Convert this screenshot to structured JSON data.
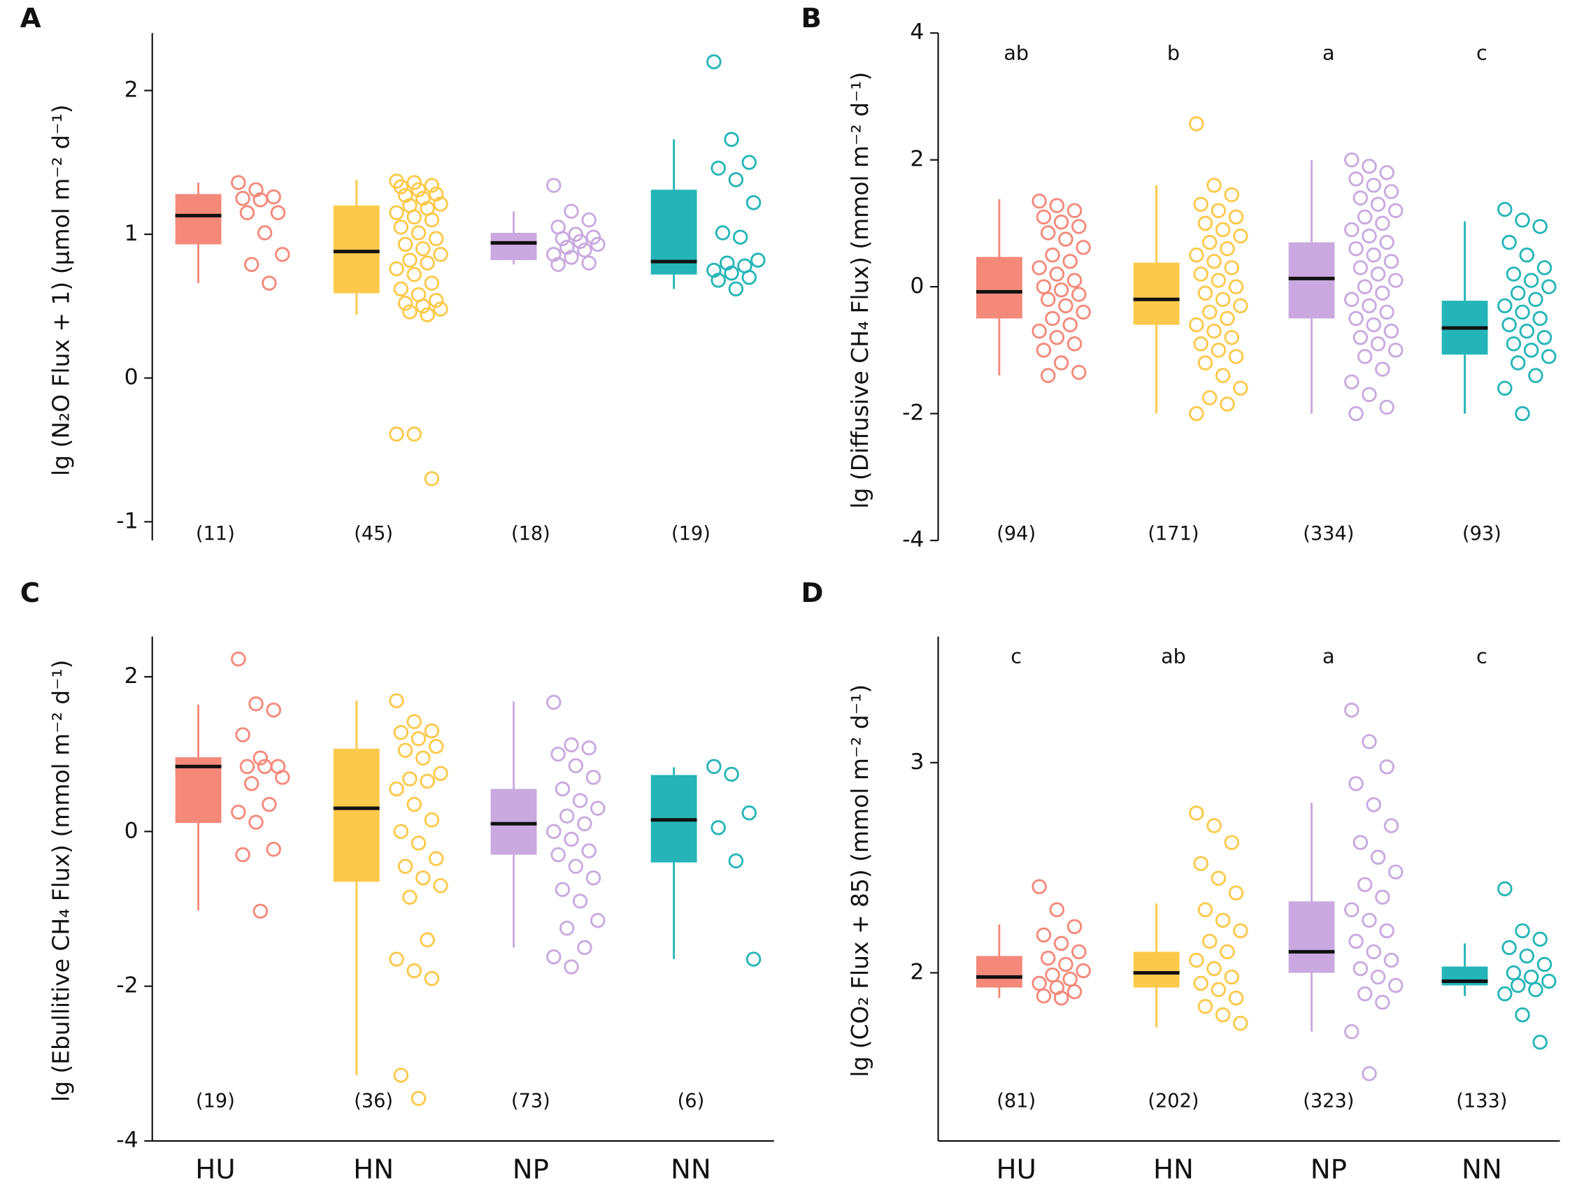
{
  "colors": [
    "#f4897a",
    "#fdc94a",
    "#c9a9df",
    "#25b5b8"
  ],
  "chart_data": [
    {
      "type": "box",
      "panel": "A",
      "ylabel": "lg (N₂O Flux + 1) (μmol m⁻² d⁻¹)",
      "ylim": [
        -1.13,
        2.4
      ],
      "yticks": [
        -1,
        0,
        1,
        2
      ],
      "n_labels": [
        "(11)",
        "(45)",
        "(18)",
        "(19)"
      ],
      "boxes": [
        {
          "whislo": 0.66,
          "q1": 0.93,
          "med": 1.13,
          "q3": 1.28,
          "whishi": 1.36
        },
        {
          "whislo": 0.44,
          "q1": 0.59,
          "med": 0.88,
          "q3": 1.2,
          "whishi": 1.38
        },
        {
          "whislo": 0.79,
          "q1": 0.82,
          "med": 0.94,
          "q3": 1.01,
          "whishi": 1.16
        },
        {
          "whislo": 0.62,
          "q1": 0.72,
          "med": 0.81,
          "q3": 1.31,
          "whishi": 1.66
        }
      ],
      "points": [
        [
          1.36,
          1.31,
          1.26,
          1.25,
          1.24,
          1.15,
          1.15,
          1.01,
          0.86,
          0.79,
          0.66
        ],
        [
          1.37,
          1.36,
          1.34,
          1.33,
          1.31,
          1.28,
          1.27,
          1.25,
          1.21,
          1.2,
          1.18,
          1.15,
          1.12,
          1.1,
          1.05,
          1.01,
          0.97,
          0.93,
          0.9,
          0.86,
          0.82,
          0.8,
          0.76,
          0.72,
          0.66,
          0.62,
          0.58,
          0.54,
          0.52,
          0.5,
          0.48,
          0.46,
          0.44,
          -0.39,
          -0.39,
          -0.7
        ],
        [
          1.34,
          1.16,
          1.1,
          1.05,
          1.0,
          0.98,
          0.97,
          0.95,
          0.93,
          0.91,
          0.89,
          0.86,
          0.84,
          0.8,
          0.79
        ],
        [
          2.2,
          1.66,
          1.5,
          1.46,
          1.38,
          1.22,
          1.01,
          0.98,
          0.82,
          0.8,
          0.78,
          0.75,
          0.73,
          0.7,
          0.68,
          0.62
        ]
      ]
    },
    {
      "type": "box",
      "panel": "B",
      "ylabel": "lg (Diffusive CH₄ Flux) (mmol m⁻² d⁻¹)",
      "ylim": [
        -4,
        4
      ],
      "yticks": [
        -4,
        -2,
        0,
        2,
        4
      ],
      "letters": [
        "ab",
        "b",
        "a",
        "c"
      ],
      "n_labels": [
        "(94)",
        "(171)",
        "(334)",
        "(93)"
      ],
      "boxes": [
        {
          "whislo": -1.4,
          "q1": -0.5,
          "med": -0.08,
          "q3": 0.47,
          "whishi": 1.38
        },
        {
          "whislo": -2.0,
          "q1": -0.6,
          "med": -0.2,
          "q3": 0.38,
          "whishi": 1.6
        },
        {
          "whislo": -2.0,
          "q1": -0.5,
          "med": 0.13,
          "q3": 0.7,
          "whishi": 2.0
        },
        {
          "whislo": -2.0,
          "q1": -1.07,
          "med": -0.65,
          "q3": -0.22,
          "whishi": 1.03
        }
      ],
      "points": [
        [
          1.35,
          1.28,
          1.2,
          1.1,
          1.02,
          0.95,
          0.85,
          0.75,
          0.62,
          0.5,
          0.4,
          0.3,
          0.2,
          0.1,
          0.0,
          -0.05,
          -0.12,
          -0.2,
          -0.3,
          -0.4,
          -0.5,
          -0.6,
          -0.7,
          -0.8,
          -0.9,
          -1.0,
          -1.2,
          -1.35,
          -1.4
        ],
        [
          2.57,
          1.6,
          1.45,
          1.3,
          1.2,
          1.1,
          1.0,
          0.9,
          0.8,
          0.7,
          0.6,
          0.5,
          0.4,
          0.3,
          0.2,
          0.1,
          0.0,
          -0.1,
          -0.2,
          -0.3,
          -0.4,
          -0.5,
          -0.6,
          -0.7,
          -0.8,
          -0.9,
          -1.0,
          -1.1,
          -1.2,
          -1.4,
          -1.6,
          -1.75,
          -1.85,
          -2.0
        ],
        [
          2.0,
          1.9,
          1.8,
          1.7,
          1.6,
          1.5,
          1.4,
          1.3,
          1.2,
          1.1,
          1.0,
          0.9,
          0.8,
          0.7,
          0.6,
          0.5,
          0.4,
          0.3,
          0.2,
          0.1,
          0.0,
          -0.1,
          -0.2,
          -0.3,
          -0.4,
          -0.5,
          -0.6,
          -0.7,
          -0.8,
          -0.9,
          -1.0,
          -1.1,
          -1.3,
          -1.5,
          -1.7,
          -1.9,
          -2.0
        ],
        [
          1.22,
          1.05,
          0.95,
          0.7,
          0.5,
          0.3,
          0.2,
          0.1,
          0.0,
          -0.1,
          -0.2,
          -0.3,
          -0.4,
          -0.5,
          -0.6,
          -0.7,
          -0.8,
          -0.9,
          -1.0,
          -1.1,
          -1.2,
          -1.4,
          -1.6,
          -2.0
        ]
      ]
    },
    {
      "type": "box",
      "panel": "C",
      "ylabel": "lg (Ebullitive CH₄ Flux) (mmol m⁻² d⁻¹)",
      "categories": [
        "HU",
        "HN",
        "NP",
        "NN"
      ],
      "ylim": [
        -4,
        2.52
      ],
      "yticks": [
        -4,
        -2,
        0,
        2
      ],
      "n_labels": [
        "(19)",
        "(36)",
        "(73)",
        "(6)"
      ],
      "boxes": [
        {
          "whislo": -1.02,
          "q1": 0.11,
          "med": 0.84,
          "q3": 0.96,
          "whishi": 1.64
        },
        {
          "whislo": -3.15,
          "q1": -0.65,
          "med": 0.3,
          "q3": 1.07,
          "whishi": 1.69
        },
        {
          "whislo": -1.5,
          "q1": -0.3,
          "med": 0.1,
          "q3": 0.55,
          "whishi": 1.68
        },
        {
          "whislo": -1.65,
          "q1": -0.4,
          "med": 0.15,
          "q3": 0.73,
          "whishi": 0.83
        }
      ],
      "points": [
        [
          2.23,
          1.65,
          1.57,
          1.25,
          0.95,
          0.84,
          0.84,
          0.84,
          0.7,
          0.62,
          0.35,
          0.25,
          0.12,
          -0.23,
          -0.3,
          -1.03
        ],
        [
          1.69,
          1.42,
          1.3,
          1.28,
          1.2,
          1.1,
          1.05,
          0.95,
          0.75,
          0.68,
          0.65,
          0.55,
          0.35,
          0.15,
          0.0,
          -0.15,
          -0.35,
          -0.45,
          -0.6,
          -0.7,
          -0.85,
          -1.4,
          -1.65,
          -1.8,
          -1.9,
          -3.15,
          -3.45
        ],
        [
          1.67,
          1.12,
          1.08,
          1.0,
          0.85,
          0.7,
          0.55,
          0.4,
          0.3,
          0.2,
          0.1,
          0.0,
          -0.1,
          -0.25,
          -0.3,
          -0.45,
          -0.6,
          -0.75,
          -0.9,
          -1.15,
          -1.25,
          -1.5,
          -1.62,
          -1.75
        ],
        [
          0.84,
          0.74,
          0.24,
          0.05,
          -0.38,
          -1.65
        ]
      ]
    },
    {
      "type": "box",
      "panel": "D",
      "ylabel": "lg (CO₂ Flux + 85) (mmol m⁻² d⁻¹)",
      "categories": [
        "HU",
        "HN",
        "NP",
        "NN"
      ],
      "ylim": [
        1.2,
        3.6
      ],
      "yticks": [
        2,
        3
      ],
      "letters": [
        "c",
        "ab",
        "a",
        "c"
      ],
      "n_labels": [
        "(81)",
        "(202)",
        "(323)",
        "(133)"
      ],
      "boxes": [
        {
          "whislo": 1.88,
          "q1": 1.93,
          "med": 1.98,
          "q3": 2.08,
          "whishi": 2.23
        },
        {
          "whislo": 1.74,
          "q1": 1.93,
          "med": 2.0,
          "q3": 2.1,
          "whishi": 2.33
        },
        {
          "whislo": 1.72,
          "q1": 2.0,
          "med": 2.1,
          "q3": 2.34,
          "whishi": 2.81
        },
        {
          "whislo": 1.89,
          "q1": 1.94,
          "med": 1.96,
          "q3": 2.03,
          "whishi": 2.14
        }
      ],
      "points": [
        [
          2.41,
          2.3,
          2.22,
          2.18,
          2.14,
          2.1,
          2.07,
          2.04,
          2.01,
          1.99,
          1.97,
          1.95,
          1.93,
          1.91,
          1.89,
          1.88
        ],
        [
          2.76,
          2.7,
          2.62,
          2.52,
          2.45,
          2.38,
          2.3,
          2.25,
          2.2,
          2.15,
          2.1,
          2.06,
          2.02,
          1.98,
          1.95,
          1.92,
          1.88,
          1.84,
          1.8,
          1.76
        ],
        [
          3.25,
          3.1,
          2.98,
          2.9,
          2.8,
          2.7,
          2.62,
          2.55,
          2.48,
          2.42,
          2.36,
          2.3,
          2.25,
          2.2,
          2.15,
          2.1,
          2.06,
          2.02,
          1.98,
          1.94,
          1.9,
          1.86,
          1.72,
          1.52
        ],
        [
          2.4,
          2.2,
          2.16,
          2.12,
          2.08,
          2.04,
          2.0,
          1.98,
          1.96,
          1.94,
          1.92,
          1.9,
          1.8,
          1.67
        ]
      ]
    }
  ]
}
